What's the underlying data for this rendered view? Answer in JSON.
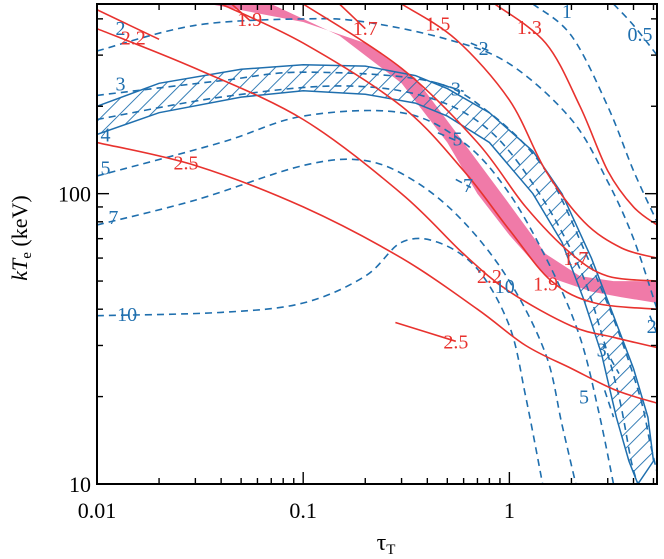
{
  "chart_data": {
    "type": "contour",
    "xlabel": "τ",
    "xlabel_sub": "T",
    "ylabel_main": "kT",
    "ylabel_sub": "e",
    "ylabel_unit": " (keV)",
    "x_scale": "log",
    "y_scale": "log",
    "xlim": [
      0.01,
      5.2
    ],
    "ylim": [
      10,
      450
    ],
    "x_ticks": [
      {
        "value": 0.01,
        "label": "0.01"
      },
      {
        "value": 0.1,
        "label": "0.1"
      },
      {
        "value": 1,
        "label": "1"
      }
    ],
    "y_ticks": [
      {
        "value": 10,
        "label": "10"
      },
      {
        "value": 100,
        "label": "100"
      }
    ],
    "colors": {
      "red_contour": "#e8322e",
      "blue_contour": "#1f6fae",
      "pink_band": "#f07aa8",
      "blue_hatch": "#1f6fae"
    },
    "red_contours": [
      {
        "label": "2.5",
        "points": [
          [
            0.01,
            150
          ],
          [
            0.03,
            125
          ],
          [
            0.1,
            90
          ],
          [
            0.3,
            60
          ],
          [
            0.7,
            40
          ],
          [
            1.2,
            30
          ],
          [
            2,
            25
          ],
          [
            3.3,
            21
          ],
          [
            5.2,
            19
          ]
        ],
        "label_at": [
          0.027,
          128
        ]
      },
      {
        "label": "2.5",
        "points": [
          [
            0.28,
            36
          ],
          [
            0.55,
            31
          ]
        ],
        "label_at": [
          0.55,
          31
        ]
      },
      {
        "label": "2.2",
        "points": [
          [
            0.01,
            370
          ],
          [
            0.03,
            270
          ],
          [
            0.1,
            180
          ],
          [
            0.3,
            100
          ],
          [
            0.6,
            62
          ],
          [
            1,
            46
          ],
          [
            2,
            35
          ],
          [
            3.2,
            32
          ],
          [
            5.2,
            29.5
          ]
        ],
        "label_at": [
          0.8,
          52
        ]
      },
      {
        "label": "2.2",
        "points": [
          [
            0.01,
            430
          ],
          [
            0.02,
            340
          ]
        ],
        "label_at": [
          0.015,
          345
        ]
      },
      {
        "label": "1.9",
        "points": [
          [
            0.04,
            450
          ],
          [
            0.1,
            330
          ],
          [
            0.3,
            200
          ],
          [
            0.6,
            120
          ],
          [
            1,
            75
          ],
          [
            1.6,
            50
          ],
          [
            2.6,
            42
          ],
          [
            5.2,
            40
          ]
        ],
        "label_at": [
          1.5,
          49
        ]
      },
      {
        "label": "1.9",
        "points": [
          [
            0.045,
            450
          ],
          [
            0.055,
            395
          ]
        ],
        "label_at": [
          0.055,
          400
        ]
      },
      {
        "label": "1.7",
        "points": [
          [
            0.1,
            450
          ],
          [
            0.3,
            270
          ],
          [
            0.7,
            150
          ],
          [
            1.2,
            90
          ],
          [
            2,
            62
          ],
          [
            3,
            52
          ],
          [
            5.2,
            50
          ]
        ],
        "label_at": [
          2.1,
          60
        ]
      },
      {
        "label": "1.7",
        "points": [
          [
            0.15,
            450
          ],
          [
            0.2,
            370
          ]
        ],
        "label_at": [
          0.2,
          372
        ]
      },
      {
        "label": "1.5",
        "points": [
          [
            0.3,
            450
          ],
          [
            0.55,
            340
          ],
          [
            1,
            210
          ],
          [
            1.5,
            120
          ],
          [
            2.3,
            80
          ],
          [
            3.5,
            65
          ],
          [
            5.2,
            60
          ]
        ],
        "label_at": [
          0.45,
          385
        ]
      },
      {
        "label": "1.3",
        "points": [
          [
            0.85,
            450
          ],
          [
            1.5,
            330
          ],
          [
            2.2,
            200
          ],
          [
            3,
            120
          ],
          [
            4,
            90
          ],
          [
            5.2,
            78
          ]
        ],
        "label_at": [
          1.25,
          375
        ]
      }
    ],
    "blue_contours": [
      {
        "label": "10",
        "points": [
          [
            0.01,
            38
          ],
          [
            0.04,
            39
          ],
          [
            0.1,
            42
          ],
          [
            0.2,
            52
          ],
          [
            0.3,
            68
          ],
          [
            0.45,
            68
          ],
          [
            0.7,
            55
          ],
          [
            1,
            35
          ],
          [
            1.2,
            20
          ],
          [
            1.45,
            10
          ]
        ],
        "label_at": [
          0.014,
          38.5
        ]
      },
      {
        "label": "10",
        "points": [
          [
            0.85,
            50
          ],
          [
            0.95,
            47
          ]
        ],
        "label_at": [
          0.95,
          48
        ]
      },
      {
        "label": "7",
        "points": [
          [
            0.01,
            78
          ],
          [
            0.03,
            95
          ],
          [
            0.1,
            125
          ],
          [
            0.2,
            130
          ],
          [
            0.35,
            110
          ],
          [
            0.6,
            80
          ],
          [
            1,
            50
          ],
          [
            1.5,
            28
          ],
          [
            1.8,
            16
          ],
          [
            2.1,
            10
          ]
        ],
        "label_at": [
          0.012,
          83
        ]
      },
      {
        "label": "7",
        "points": [
          [
            0.55,
            112
          ],
          [
            0.65,
            105
          ]
        ],
        "label_at": [
          0.63,
          107
        ]
      },
      {
        "label": "5",
        "points": [
          [
            0.01,
            115
          ],
          [
            0.04,
            150
          ],
          [
            0.1,
            185
          ],
          [
            0.3,
            190
          ],
          [
            0.6,
            150
          ],
          [
            1,
            100
          ],
          [
            1.6,
            55
          ],
          [
            2.2,
            32
          ],
          [
            2.7,
            18
          ],
          [
            3.2,
            10
          ]
        ],
        "label_at": [
          0.011,
          123
        ]
      },
      {
        "label": "5",
        "points": [
          [
            0.45,
            162
          ],
          [
            0.58,
            150
          ]
        ],
        "label_at": [
          0.56,
          155
        ]
      },
      {
        "label": "5",
        "points": [
          [
            2.9,
            21
          ],
          [
            3.2,
            17
          ]
        ],
        "label_at": [
          2.3,
          20
        ]
      },
      {
        "label": "4",
        "points": [
          [
            0.01,
            180
          ],
          [
            0.04,
            215
          ],
          [
            0.15,
            235
          ],
          [
            0.4,
            215
          ],
          [
            0.8,
            165
          ],
          [
            1.4,
            100
          ],
          [
            2.2,
            55
          ],
          [
            2.8,
            33
          ],
          [
            3.4,
            20
          ],
          [
            3.9,
            12
          ],
          [
            4.2,
            10
          ]
        ],
        "label_at": [
          0.011,
          160
        ]
      },
      {
        "label": "3",
        "points": [
          [
            0.01,
            218
          ],
          [
            0.04,
            245
          ],
          [
            0.1,
            262
          ],
          [
            0.4,
            245
          ],
          [
            0.8,
            190
          ],
          [
            1.5,
            120
          ],
          [
            2.4,
            60
          ],
          [
            3.3,
            35
          ],
          [
            4.3,
            20
          ],
          [
            4.8,
            14
          ],
          [
            5.2,
            11
          ]
        ],
        "label_at": [
          0.013,
          240
        ]
      },
      {
        "label": "3",
        "points": [
          [
            0.45,
            240
          ],
          [
            0.6,
            225
          ]
        ],
        "label_at": [
          0.55,
          230
        ]
      },
      {
        "label": "3",
        "points": [
          [
            3.1,
            27
          ],
          [
            3.4,
            24
          ]
        ],
        "label_at": [
          2.8,
          29
        ]
      },
      {
        "label": "2",
        "points": [
          [
            0.01,
            310
          ],
          [
            0.03,
            380
          ],
          [
            0.1,
            400
          ],
          [
            0.2,
            390
          ],
          [
            0.5,
            340
          ],
          [
            1,
            280
          ],
          [
            2,
            180
          ],
          [
            3,
            110
          ],
          [
            4,
            70
          ],
          [
            5.2,
            40
          ]
        ],
        "label_at": [
          0.013,
          372
        ]
      },
      {
        "label": "2",
        "points": [
          [
            0.65,
            330
          ],
          [
            0.8,
            310
          ]
        ],
        "label_at": [
          0.75,
          318
        ]
      },
      {
        "label": "2",
        "points": [
          [
            4.8,
            38
          ],
          [
            5.2,
            33
          ]
        ],
        "label_at": [
          4.9,
          35
        ]
      },
      {
        "label": "1",
        "points": [
          [
            1.3,
            450
          ],
          [
            2,
            350
          ],
          [
            3,
            200
          ],
          [
            4,
            120
          ],
          [
            5.2,
            80
          ]
        ],
        "label_at": [
          1.9,
          425
        ]
      },
      {
        "label": "0.5",
        "points": [
          [
            3.2,
            450
          ],
          [
            4,
            380
          ],
          [
            5.2,
            300
          ]
        ],
        "label_at": [
          4.3,
          355
        ]
      }
    ],
    "pink_band": {
      "upper": [
        [
          0.035,
          450
        ],
        [
          0.1,
          390
        ],
        [
          0.2,
          330
        ],
        [
          0.35,
          250
        ],
        [
          0.6,
          150
        ],
        [
          1,
          92
        ],
        [
          1.5,
          62
        ],
        [
          2.2,
          52
        ],
        [
          3.2,
          50
        ],
        [
          5.2,
          50
        ]
      ],
      "lower": [
        [
          0.07,
          450
        ],
        [
          0.15,
          350
        ],
        [
          0.3,
          240
        ],
        [
          0.5,
          150
        ],
        [
          0.7,
          100
        ],
        [
          1,
          72
        ],
        [
          1.5,
          52
        ],
        [
          2.5,
          46
        ],
        [
          3.5,
          44
        ],
        [
          5.2,
          42
        ]
      ]
    },
    "hatch_band": {
      "upper": [
        [
          0.01,
          200
        ],
        [
          0.02,
          240
        ],
        [
          0.05,
          268
        ],
        [
          0.1,
          278
        ],
        [
          0.2,
          275
        ],
        [
          0.35,
          255
        ],
        [
          0.5,
          230
        ],
        [
          0.8,
          190
        ],
        [
          1.3,
          140
        ],
        [
          1.8,
          100
        ],
        [
          2.5,
          60
        ],
        [
          3.2,
          38
        ],
        [
          4,
          25
        ],
        [
          4.7,
          17
        ],
        [
          5,
          12
        ]
      ],
      "lower": [
        [
          0.01,
          160
        ],
        [
          0.02,
          190
        ],
        [
          0.05,
          215
        ],
        [
          0.1,
          226
        ],
        [
          0.2,
          220
        ],
        [
          0.35,
          205
        ],
        [
          0.5,
          185
        ],
        [
          0.8,
          150
        ],
        [
          1.3,
          100
        ],
        [
          1.8,
          68
        ],
        [
          2.3,
          43
        ],
        [
          2.8,
          28
        ],
        [
          3.3,
          17
        ],
        [
          3.8,
          12
        ],
        [
          4.2,
          10
        ]
      ]
    }
  }
}
